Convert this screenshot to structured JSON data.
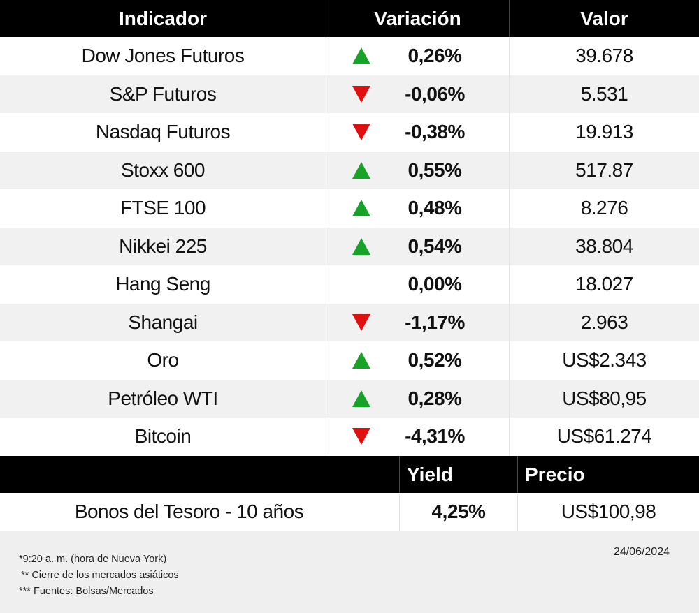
{
  "header": {
    "indicator": "Indicador",
    "variation": "Variación",
    "value": "Valor"
  },
  "rows": [
    {
      "name": "Dow Jones Futuros",
      "variation": "0,26%",
      "direction": "up",
      "value": "39.678"
    },
    {
      "name": "S&P Futuros",
      "variation": "-0,06%",
      "direction": "down",
      "value": "5.531"
    },
    {
      "name": "Nasdaq Futuros",
      "variation": "-0,38%",
      "direction": "down",
      "value": "19.913"
    },
    {
      "name": "Stoxx 600",
      "variation": "0,55%",
      "direction": "up",
      "value": "517.87"
    },
    {
      "name": "FTSE 100",
      "variation": "0,48%",
      "direction": "up",
      "value": "8.276"
    },
    {
      "name": "Nikkei 225",
      "variation": "0,54%",
      "direction": "up",
      "value": "38.804"
    },
    {
      "name": "Hang Seng",
      "variation": "0,00%",
      "direction": "none",
      "value": "18.027"
    },
    {
      "name": "Shangai",
      "variation": "-1,17%",
      "direction": "down",
      "value": "2.963"
    },
    {
      "name": "Oro",
      "variation": "0,52%",
      "direction": "up",
      "value": "US$2.343"
    },
    {
      "name": "Petróleo WTI",
      "variation": "0,28%",
      "direction": "up",
      "value": "US$80,95"
    },
    {
      "name": "Bitcoin",
      "variation": "-4,31%",
      "direction": "down",
      "value": "US$61.274"
    }
  ],
  "bonds": {
    "header": {
      "yield": "Yield",
      "price": "Precio"
    },
    "name": "Bonos del Tesoro - 10 años",
    "yield": "4,25%",
    "price": "US$100,98"
  },
  "footer": {
    "notes": [
      "*9:20 a. m. (hora de Nueva York)",
      "** Cierre de los mercados asiáticos",
      "*** Fuentes: Bolsas/Mercados"
    ],
    "date": "24/06/2024"
  },
  "colors": {
    "up": "#17a327",
    "down": "#e01010",
    "header_bg": "#000000",
    "alt_row": "#f1f1f1",
    "footer_bg": "#efefef"
  },
  "icons": {
    "up": "triangle-up-icon",
    "down": "triangle-down-icon"
  }
}
